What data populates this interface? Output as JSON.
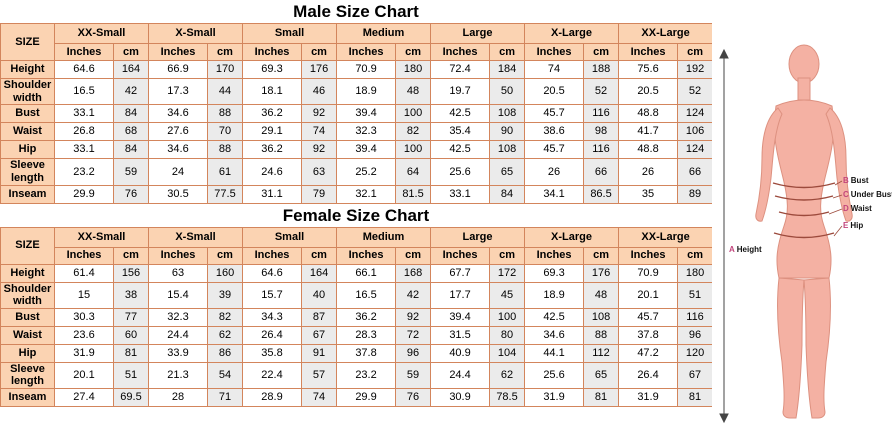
{
  "colors": {
    "head_bg": "#fbd3b2",
    "grid": "#d3855c",
    "alt_bg": "#ebebeb",
    "body_fill": "#f4b1a3",
    "body_stroke": "#dd9180",
    "band_color": "#9c4a3c",
    "letter_color": "#c2457c",
    "height_line": "#444444"
  },
  "chart_data": [
    {
      "type": "table",
      "title": "Male Size Chart",
      "size_label": "SIZE",
      "units": [
        "Inches",
        "cm"
      ],
      "sizes": [
        "XX-Small",
        "X-Small",
        "Small",
        "Medium",
        "Large",
        "X-Large",
        "XX-Large"
      ],
      "rows": [
        {
          "label": "Height",
          "values": [
            "64.6",
            "164",
            "66.9",
            "170",
            "69.3",
            "176",
            "70.9",
            "180",
            "72.4",
            "184",
            "74",
            "188",
            "75.6",
            "192"
          ]
        },
        {
          "label": "Shoulder width",
          "values": [
            "16.5",
            "42",
            "17.3",
            "44",
            "18.1",
            "46",
            "18.9",
            "48",
            "19.7",
            "50",
            "20.5",
            "52",
            "20.5",
            "52"
          ]
        },
        {
          "label": "Bust",
          "values": [
            "33.1",
            "84",
            "34.6",
            "88",
            "36.2",
            "92",
            "39.4",
            "100",
            "42.5",
            "108",
            "45.7",
            "116",
            "48.8",
            "124"
          ]
        },
        {
          "label": "Waist",
          "values": [
            "26.8",
            "68",
            "27.6",
            "70",
            "29.1",
            "74",
            "32.3",
            "82",
            "35.4",
            "90",
            "38.6",
            "98",
            "41.7",
            "106"
          ]
        },
        {
          "label": "Hip",
          "values": [
            "33.1",
            "84",
            "34.6",
            "88",
            "36.2",
            "92",
            "39.4",
            "100",
            "42.5",
            "108",
            "45.7",
            "116",
            "48.8",
            "124"
          ]
        },
        {
          "label": "Sleeve length",
          "values": [
            "23.2",
            "59",
            "24",
            "61",
            "24.6",
            "63",
            "25.2",
            "64",
            "25.6",
            "65",
            "26",
            "66",
            "26",
            "66"
          ]
        },
        {
          "label": "Inseam",
          "values": [
            "29.9",
            "76",
            "30.5",
            "77.5",
            "31.1",
            "79",
            "32.1",
            "81.5",
            "33.1",
            "84",
            "34.1",
            "86.5",
            "35",
            "89"
          ]
        }
      ]
    },
    {
      "type": "table",
      "title": "Female Size Chart",
      "size_label": "SIZE",
      "units": [
        "Inches",
        "cm"
      ],
      "sizes": [
        "XX-Small",
        "X-Small",
        "Small",
        "Medium",
        "Large",
        "X-Large",
        "XX-Large"
      ],
      "rows": [
        {
          "label": "Height",
          "values": [
            "61.4",
            "156",
            "63",
            "160",
            "64.6",
            "164",
            "66.1",
            "168",
            "67.7",
            "172",
            "69.3",
            "176",
            "70.9",
            "180"
          ]
        },
        {
          "label": "Shoulder width",
          "values": [
            "15",
            "38",
            "15.4",
            "39",
            "15.7",
            "40",
            "16.5",
            "42",
            "17.7",
            "45",
            "18.9",
            "48",
            "20.1",
            "51"
          ]
        },
        {
          "label": "Bust",
          "values": [
            "30.3",
            "77",
            "32.3",
            "82",
            "34.3",
            "87",
            "36.2",
            "92",
            "39.4",
            "100",
            "42.5",
            "108",
            "45.7",
            "116"
          ]
        },
        {
          "label": "Waist",
          "values": [
            "23.6",
            "60",
            "24.4",
            "62",
            "26.4",
            "67",
            "28.3",
            "72",
            "31.5",
            "80",
            "34.6",
            "88",
            "37.8",
            "96"
          ]
        },
        {
          "label": "Hip",
          "values": [
            "31.9",
            "81",
            "33.9",
            "86",
            "35.8",
            "91",
            "37.8",
            "96",
            "40.9",
            "104",
            "44.1",
            "112",
            "47.2",
            "120"
          ]
        },
        {
          "label": "Sleeve length",
          "values": [
            "20.1",
            "51",
            "21.3",
            "54",
            "22.4",
            "57",
            "23.2",
            "59",
            "24.4",
            "62",
            "25.6",
            "65",
            "26.4",
            "67"
          ]
        },
        {
          "label": "Inseam",
          "values": [
            "27.4",
            "69.5",
            "28",
            "71",
            "28.9",
            "74",
            "29.9",
            "76",
            "30.9",
            "78.5",
            "31.9",
            "81",
            "31.9",
            "81"
          ]
        }
      ]
    }
  ],
  "figure": {
    "labels": [
      {
        "key": "A",
        "text": "Height"
      },
      {
        "key": "B",
        "text": "Bust"
      },
      {
        "key": "C",
        "text": "Under Bust"
      },
      {
        "key": "D",
        "text": "Waist"
      },
      {
        "key": "E",
        "text": "Hip"
      }
    ]
  }
}
